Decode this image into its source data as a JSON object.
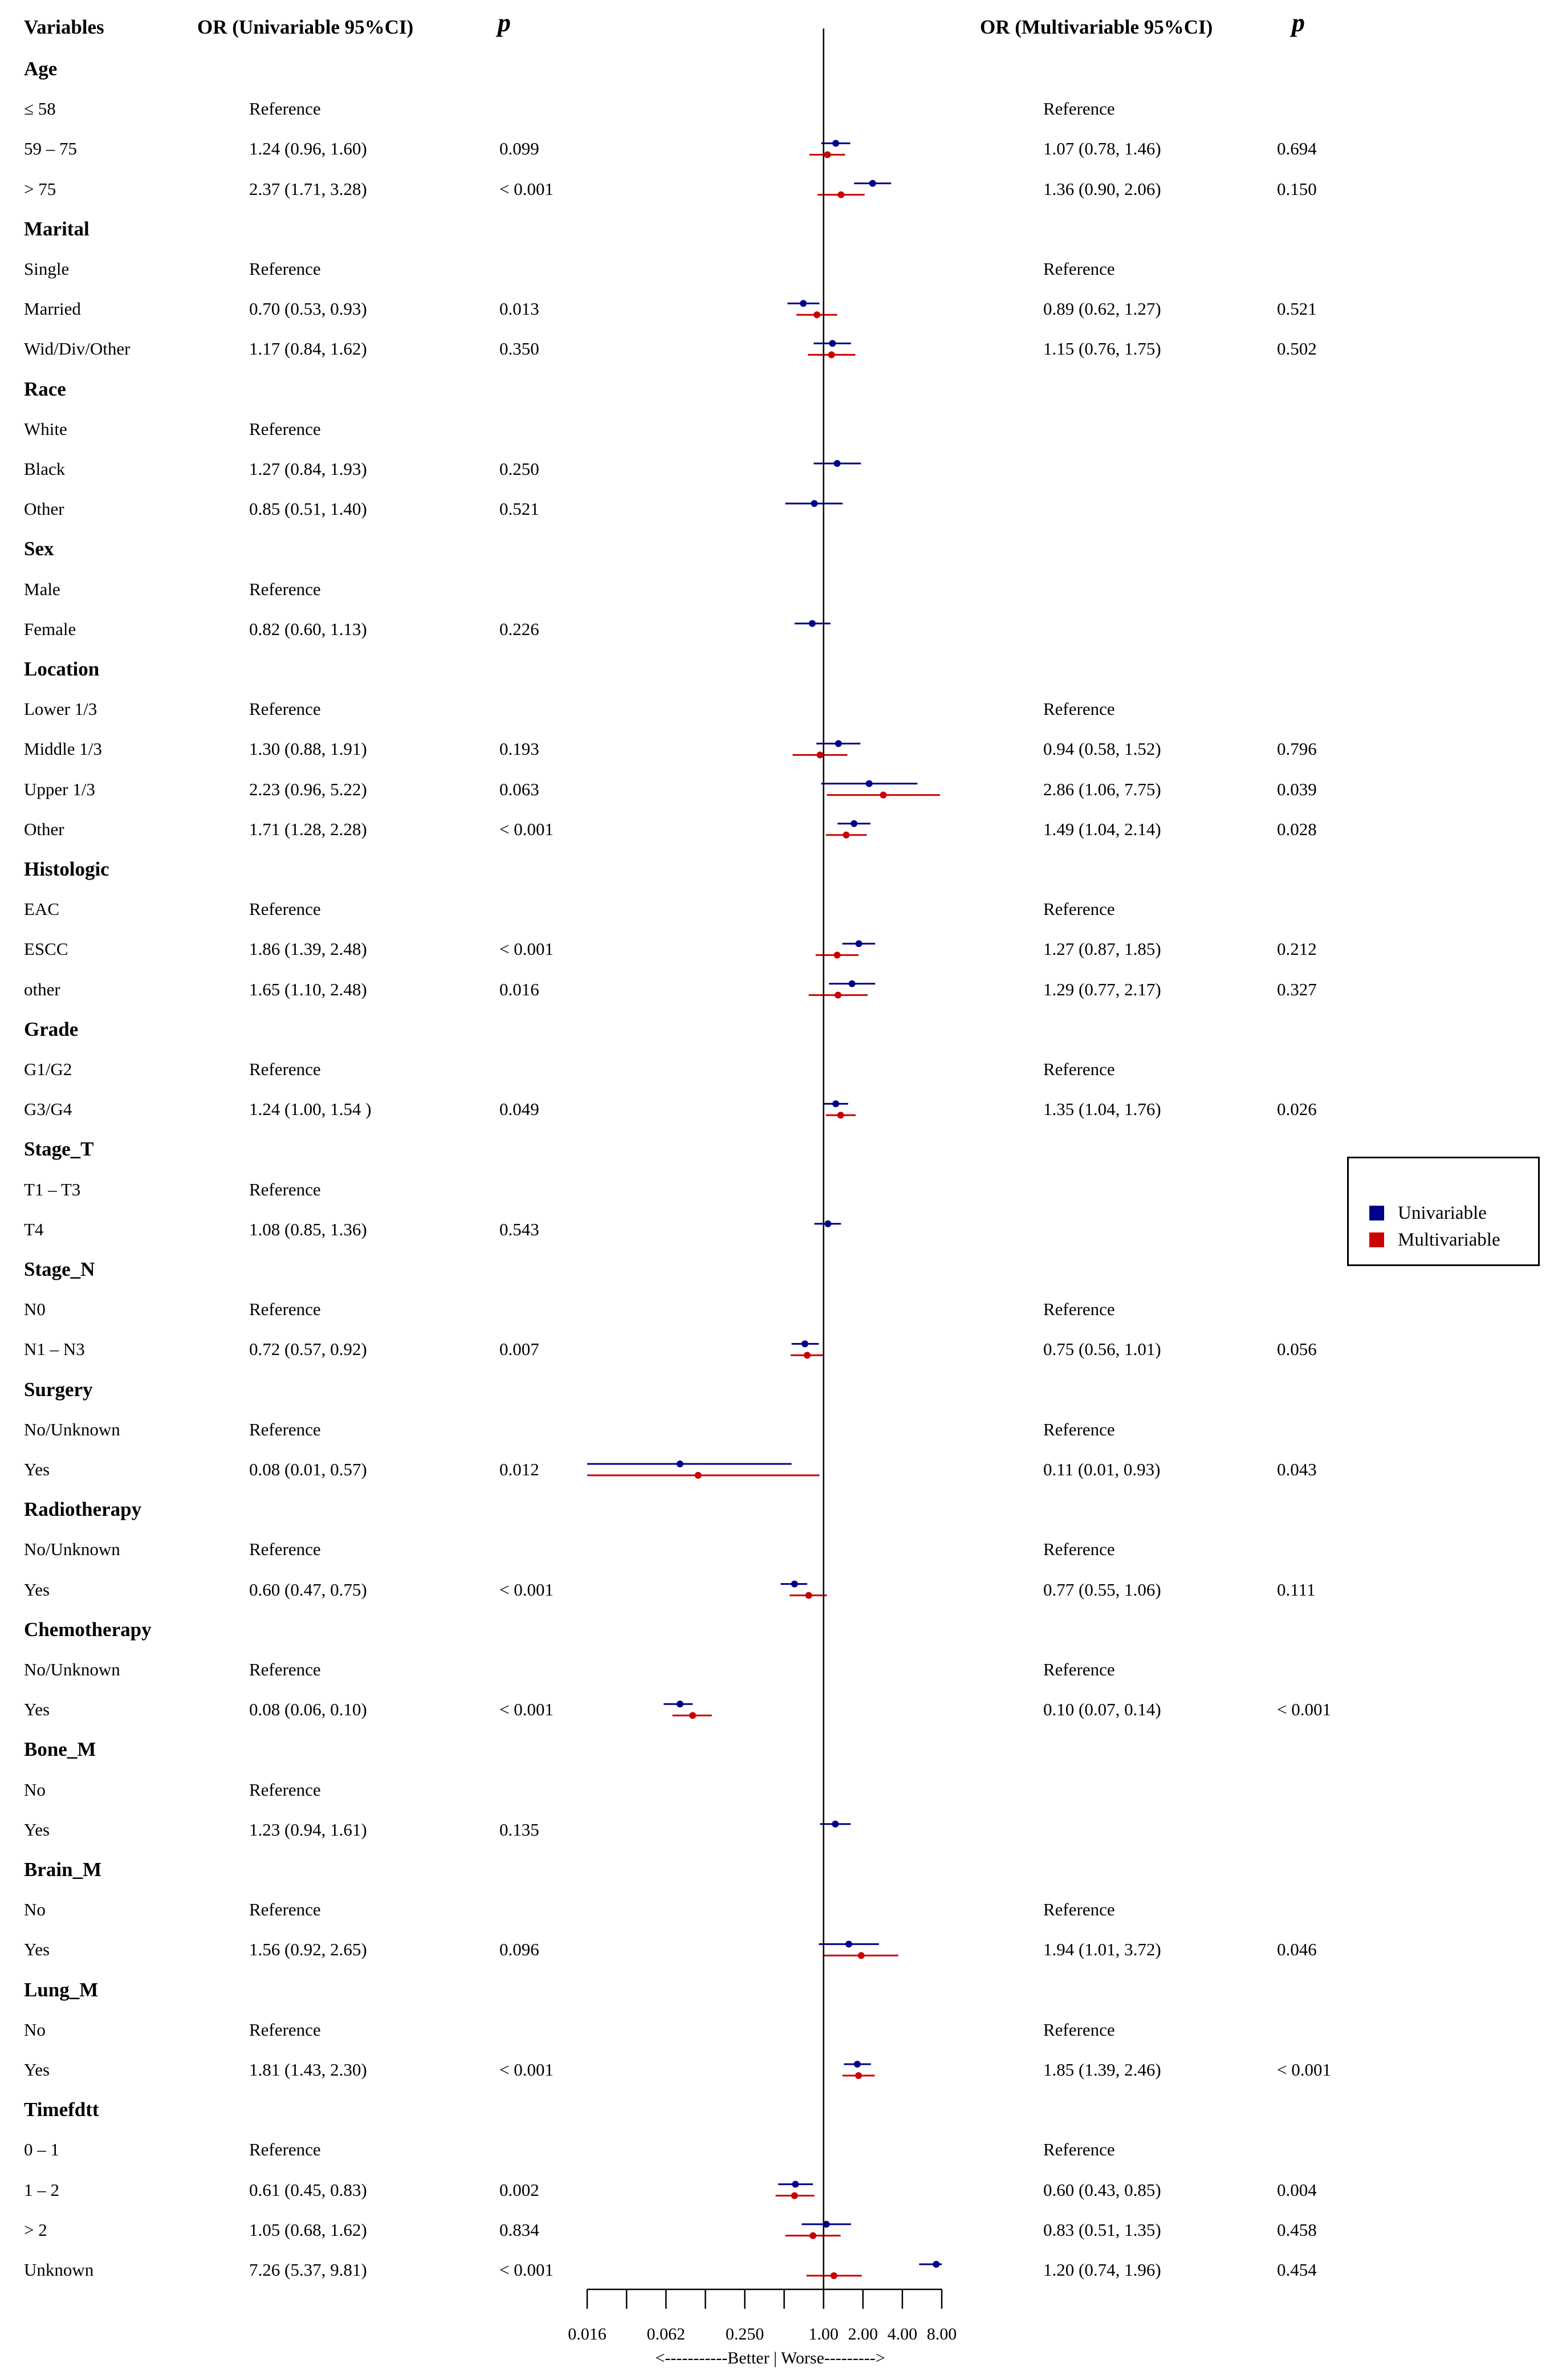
{
  "chart_data": {
    "type": "forest",
    "scale": "log2",
    "xlim": [
      0.0156,
      8.0
    ],
    "xticks": [
      "0.016",
      "0.062",
      "0.250",
      "1.00",
      "2.00",
      "4.00",
      "8.00"
    ],
    "xtick_values": [
      0.015625,
      0.0625,
      0.25,
      1.0,
      2.0,
      4.0,
      8.0
    ],
    "reference_line": 1.0,
    "xlabel": "<-----------Better  |  Worse--------->",
    "headers": {
      "variables": "Variables",
      "or_uni": "OR (Univariable 95%CI)",
      "p_uni": "p",
      "or_multi": "OR (Multivariable 95%CI)",
      "p_multi": "p"
    },
    "legend": [
      {
        "name": "Univariable",
        "color": "#00008b"
      },
      {
        "name": "Multivariable",
        "color": "#cc0000"
      }
    ],
    "groups": [
      {
        "name": "Age",
        "rows": [
          {
            "label": "≤ 58",
            "uni_text": "Reference",
            "uni_p": "",
            "multi_text": "Reference",
            "multi_p": ""
          },
          {
            "label": "59 – 75",
            "uni_text": "1.24 (0.96, 1.60)",
            "uni_p": "0.099",
            "multi_text": "1.07 (0.78, 1.46)",
            "multi_p": "0.694",
            "uni": [
              1.24,
              0.96,
              1.6
            ],
            "multi": [
              1.07,
              0.78,
              1.46
            ]
          },
          {
            "label": "> 75",
            "uni_text": "2.37 (1.71, 3.28)",
            "uni_p": "< 0.001",
            "multi_text": "1.36 (0.90, 2.06)",
            "multi_p": "0.150",
            "uni": [
              2.37,
              1.71,
              3.28
            ],
            "multi": [
              1.36,
              0.9,
              2.06
            ]
          }
        ]
      },
      {
        "name": "Marital",
        "rows": [
          {
            "label": "Single",
            "uni_text": "Reference",
            "uni_p": "",
            "multi_text": "Reference",
            "multi_p": ""
          },
          {
            "label": "Married",
            "uni_text": "0.70 (0.53, 0.93)",
            "uni_p": "0.013",
            "multi_text": "0.89 (0.62, 1.27)",
            "multi_p": "0.521",
            "uni": [
              0.7,
              0.53,
              0.93
            ],
            "multi": [
              0.89,
              0.62,
              1.27
            ]
          },
          {
            "label": "Wid/Div/Other",
            "uni_text": "1.17 (0.84, 1.62)",
            "uni_p": "0.350",
            "multi_text": "1.15 (0.76, 1.75)",
            "multi_p": "0.502",
            "uni": [
              1.17,
              0.84,
              1.62
            ],
            "multi": [
              1.15,
              0.76,
              1.75
            ]
          }
        ]
      },
      {
        "name": "Race",
        "rows": [
          {
            "label": "White",
            "uni_text": "Reference",
            "uni_p": "",
            "multi_text": "",
            "multi_p": ""
          },
          {
            "label": "Black",
            "uni_text": "1.27 (0.84, 1.93)",
            "uni_p": "0.250",
            "multi_text": "",
            "multi_p": "",
            "uni": [
              1.27,
              0.84,
              1.93
            ]
          },
          {
            "label": "Other",
            "uni_text": "0.85 (0.51, 1.40)",
            "uni_p": "0.521",
            "multi_text": "",
            "multi_p": "",
            "uni": [
              0.85,
              0.51,
              1.4
            ]
          }
        ]
      },
      {
        "name": "Sex",
        "rows": [
          {
            "label": "Male",
            "uni_text": "Reference",
            "uni_p": "",
            "multi_text": "",
            "multi_p": ""
          },
          {
            "label": "Female",
            "uni_text": "0.82 (0.60, 1.13)",
            "uni_p": "0.226",
            "multi_text": "",
            "multi_p": "",
            "uni": [
              0.82,
              0.6,
              1.13
            ]
          }
        ]
      },
      {
        "name": "Location",
        "rows": [
          {
            "label": "Lower 1/3",
            "uni_text": "Reference",
            "uni_p": "",
            "multi_text": "Reference",
            "multi_p": ""
          },
          {
            "label": "Middle 1/3",
            "uni_text": "1.30 (0.88, 1.91)",
            "uni_p": "0.193",
            "multi_text": "0.94 (0.58, 1.52)",
            "multi_p": "0.796",
            "uni": [
              1.3,
              0.88,
              1.91
            ],
            "multi": [
              0.94,
              0.58,
              1.52
            ]
          },
          {
            "label": "Upper 1/3",
            "uni_text": "2.23 (0.96, 5.22)",
            "uni_p": "0.063",
            "multi_text": "2.86 (1.06, 7.75)",
            "multi_p": "0.039",
            "uni": [
              2.23,
              0.96,
              5.22
            ],
            "multi": [
              2.86,
              1.06,
              7.75
            ]
          },
          {
            "label": "Other",
            "uni_text": "1.71 (1.28, 2.28)",
            "uni_p": "< 0.001",
            "multi_text": "1.49 (1.04, 2.14)",
            "multi_p": "0.028",
            "uni": [
              1.71,
              1.28,
              2.28
            ],
            "multi": [
              1.49,
              1.04,
              2.14
            ]
          }
        ]
      },
      {
        "name": "Histologic",
        "rows": [
          {
            "label": "EAC",
            "uni_text": "Reference",
            "uni_p": "",
            "multi_text": "Reference",
            "multi_p": ""
          },
          {
            "label": "ESCC",
            "uni_text": "1.86 (1.39, 2.48)",
            "uni_p": "< 0.001",
            "multi_text": "1.27 (0.87, 1.85)",
            "multi_p": "0.212",
            "uni": [
              1.86,
              1.39,
              2.48
            ],
            "multi": [
              1.27,
              0.87,
              1.85
            ]
          },
          {
            "label": "other",
            "uni_text": "1.65 (1.10, 2.48)",
            "uni_p": "0.016",
            "multi_text": "1.29 (0.77, 2.17)",
            "multi_p": "0.327",
            "uni": [
              1.65,
              1.1,
              2.48
            ],
            "multi": [
              1.29,
              0.77,
              2.17
            ]
          }
        ]
      },
      {
        "name": "Grade",
        "rows": [
          {
            "label": "G1/G2",
            "uni_text": "Reference",
            "uni_p": "",
            "multi_text": "Reference",
            "multi_p": ""
          },
          {
            "label": "G3/G4",
            "uni_text": "1.24 (1.00, 1.54 )",
            "uni_p": "0.049",
            "multi_text": "1.35 (1.04, 1.76)",
            "multi_p": "0.026",
            "uni": [
              1.24,
              1.0,
              1.54
            ],
            "multi": [
              1.35,
              1.04,
              1.76
            ]
          }
        ]
      },
      {
        "name": "Stage_T",
        "rows": [
          {
            "label": "T1 – T3",
            "uni_text": "Reference",
            "uni_p": "",
            "multi_text": "",
            "multi_p": ""
          },
          {
            "label": "T4",
            "uni_text": "1.08 (0.85, 1.36)",
            "uni_p": "0.543",
            "multi_text": "",
            "multi_p": "",
            "uni": [
              1.08,
              0.85,
              1.36
            ]
          }
        ]
      },
      {
        "name": "Stage_N",
        "rows": [
          {
            "label": "N0",
            "uni_text": "Reference",
            "uni_p": "",
            "multi_text": "Reference",
            "multi_p": ""
          },
          {
            "label": "N1 – N3",
            "uni_text": "0.72 (0.57, 0.92)",
            "uni_p": "0.007",
            "multi_text": "0.75 (0.56, 1.01)",
            "multi_p": "0.056",
            "uni": [
              0.72,
              0.57,
              0.92
            ],
            "multi": [
              0.75,
              0.56,
              1.01
            ]
          }
        ]
      },
      {
        "name": "Surgery",
        "rows": [
          {
            "label": "No/Unknown",
            "uni_text": "Reference",
            "uni_p": "",
            "multi_text": "Reference",
            "multi_p": ""
          },
          {
            "label": "Yes",
            "uni_text": "0.08 (0.01, 0.57)",
            "uni_p": "0.012",
            "multi_text": "0.11 (0.01, 0.93)",
            "multi_p": "0.043",
            "uni": [
              0.08,
              0.01,
              0.57
            ],
            "multi": [
              0.11,
              0.01,
              0.93
            ]
          }
        ]
      },
      {
        "name": "Radiotherapy",
        "rows": [
          {
            "label": "No/Unknown",
            "uni_text": "Reference",
            "uni_p": "",
            "multi_text": "Reference",
            "multi_p": ""
          },
          {
            "label": "Yes",
            "uni_text": "0.60 (0.47, 0.75)",
            "uni_p": "< 0.001",
            "multi_text": "0.77 (0.55, 1.06)",
            "multi_p": "0.111",
            "uni": [
              0.6,
              0.47,
              0.75
            ],
            "multi": [
              0.77,
              0.55,
              1.06
            ]
          }
        ]
      },
      {
        "name": "Chemotherapy",
        "rows": [
          {
            "label": "No/Unknown",
            "uni_text": "Reference",
            "uni_p": "",
            "multi_text": "Reference",
            "multi_p": ""
          },
          {
            "label": "Yes",
            "uni_text": "0.08 (0.06, 0.10)",
            "uni_p": "< 0.001",
            "multi_text": "0.10 (0.07, 0.14)",
            "multi_p": "< 0.001",
            "uni": [
              0.08,
              0.06,
              0.1
            ],
            "multi": [
              0.1,
              0.07,
              0.14
            ]
          }
        ]
      },
      {
        "name": "Bone_M",
        "rows": [
          {
            "label": "No",
            "uni_text": "Reference",
            "uni_p": "",
            "multi_text": "",
            "multi_p": ""
          },
          {
            "label": "Yes",
            "uni_text": "1.23 (0.94, 1.61)",
            "uni_p": "0.135",
            "multi_text": "",
            "multi_p": "",
            "uni": [
              1.23,
              0.94,
              1.61
            ]
          }
        ]
      },
      {
        "name": "Brain_M",
        "rows": [
          {
            "label": "No",
            "uni_text": "Reference",
            "uni_p": "",
            "multi_text": "Reference",
            "multi_p": ""
          },
          {
            "label": "Yes",
            "uni_text": "1.56 (0.92, 2.65)",
            "uni_p": "0.096",
            "multi_text": "1.94 (1.01, 3.72)",
            "multi_p": "0.046",
            "uni": [
              1.56,
              0.92,
              2.65
            ],
            "multi": [
              1.94,
              1.01,
              3.72
            ]
          }
        ]
      },
      {
        "name": "Lung_M",
        "rows": [
          {
            "label": "No",
            "uni_text": "Reference",
            "uni_p": "",
            "multi_text": "Reference",
            "multi_p": ""
          },
          {
            "label": "Yes",
            "uni_text": "1.81 (1.43, 2.30)",
            "uni_p": "< 0.001",
            "multi_text": "1.85 (1.39, 2.46)",
            "multi_p": "< 0.001",
            "uni": [
              1.81,
              1.43,
              2.3
            ],
            "multi": [
              1.85,
              1.39,
              2.46
            ]
          }
        ]
      },
      {
        "name": "Timefdtt",
        "rows": [
          {
            "label": "0 – 1",
            "uni_text": "Reference",
            "uni_p": "",
            "multi_text": "Reference",
            "multi_p": ""
          },
          {
            "label": "1 – 2",
            "uni_text": "0.61 (0.45, 0.83)",
            "uni_p": "0.002",
            "multi_text": "0.60 (0.43, 0.85)",
            "multi_p": "0.004",
            "uni": [
              0.61,
              0.45,
              0.83
            ],
            "multi": [
              0.6,
              0.43,
              0.85
            ]
          },
          {
            "label": "> 2",
            "uni_text": "1.05 (0.68, 1.62)",
            "uni_p": "0.834",
            "multi_text": "0.83 (0.51, 1.35)",
            "multi_p": "0.458",
            "uni": [
              1.05,
              0.68,
              1.62
            ],
            "multi": [
              0.83,
              0.51,
              1.35
            ]
          },
          {
            "label": "Unknown",
            "uni_text": "7.26 (5.37, 9.81)",
            "uni_p": "< 0.001",
            "multi_text": "1.20 (0.74, 1.96)",
            "multi_p": "0.454",
            "uni": [
              7.26,
              5.37,
              9.81
            ],
            "multi": [
              1.2,
              0.74,
              1.96
            ]
          }
        ]
      }
    ]
  }
}
